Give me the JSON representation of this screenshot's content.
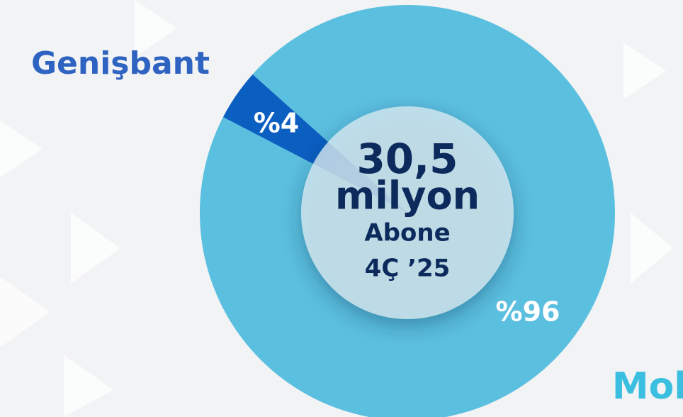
{
  "chart_data": {
    "type": "pie",
    "categories": [
      "Genişbant",
      "Mobil"
    ],
    "values": [
      4,
      96
    ],
    "value_labels": [
      "%4",
      "%96"
    ],
    "colors": [
      "#0b5fc1",
      "#5bbfdf"
    ],
    "label_colors": [
      "#2f63c1",
      "#3bbfe0"
    ],
    "center_text": [
      "30,5",
      "milyon",
      "Abone",
      "4Ç ’25"
    ]
  }
}
